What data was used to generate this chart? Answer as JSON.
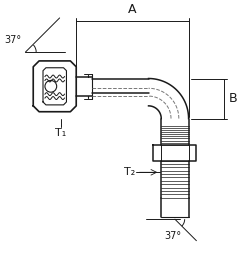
{
  "bg_color": "#ffffff",
  "line_color": "#1a1a1a",
  "dim_color": "#1a1a1a",
  "label_A": "A",
  "label_B": "B",
  "label_T1": "T₁",
  "label_T2": "T₂",
  "label_37_top": "37°",
  "label_37_bot": "37°",
  "figsize": [
    2.4,
    2.58
  ],
  "dpi": 100
}
